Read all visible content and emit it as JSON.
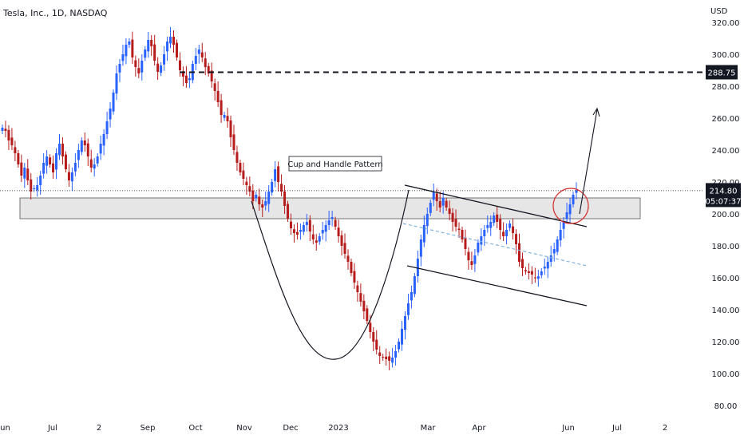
{
  "header": {
    "symbol": "Tesla, Inc., 1D, NASDAQ",
    "currency": "USD"
  },
  "chart_data": {
    "type": "candlestick",
    "y_ticks": [
      320,
      300,
      280,
      260,
      240,
      220,
      200,
      180,
      160,
      140,
      120,
      100,
      80
    ],
    "y_tick_labels": [
      "320.00",
      "300.00",
      "280.00",
      "260.00",
      "240.00",
      "220.00",
      "200.00",
      "180.00",
      "160.00",
      "140.00",
      "120.00",
      "100.00",
      "80.00"
    ],
    "x_labels": [
      "Jun",
      "Jul",
      "2",
      "Sep",
      "Oct",
      "Nov",
      "Dec",
      "2023",
      "Mar",
      "Apr",
      "Jun",
      "Jul",
      "2"
    ],
    "ylim": [
      75,
      325
    ],
    "last_price": "214.80",
    "countdown": "05:07:37",
    "target_price": "288.75",
    "annotation": "Cup and Handle Pattern",
    "support_zone": [
      197,
      210
    ],
    "grid": false,
    "colors": {
      "up": "#2962ff",
      "down": "#b71c1c",
      "line": "#131722",
      "zone": "#e6e6e6",
      "circle": "#d32f2f",
      "dash": "#7fb3e0"
    },
    "close_series": [
      254,
      252,
      246,
      243,
      238,
      231,
      224,
      229,
      221,
      214,
      216,
      218,
      224,
      232,
      236,
      231,
      226,
      238,
      244,
      236,
      228,
      221,
      226,
      232,
      240,
      246,
      243,
      236,
      229,
      231,
      236,
      244,
      250,
      258,
      266,
      276,
      288,
      294,
      300,
      306,
      308,
      298,
      292,
      288,
      296,
      303,
      309,
      305,
      296,
      289,
      293,
      300,
      308,
      311,
      306,
      298,
      290,
      286,
      282,
      285,
      294,
      299,
      303,
      298,
      292,
      288,
      283,
      277,
      270,
      262,
      262,
      258,
      248,
      240,
      232,
      226,
      222,
      218,
      214,
      208,
      212,
      206,
      204,
      208,
      214,
      220,
      228,
      220,
      214,
      205,
      197,
      191,
      188,
      187,
      190,
      193,
      195,
      189,
      184,
      182,
      186,
      190,
      193,
      196,
      198,
      192,
      186,
      180,
      175,
      170,
      163,
      157,
      151,
      145,
      139,
      133,
      126,
      120,
      115,
      111,
      110,
      109,
      108,
      110,
      114,
      120,
      128,
      136,
      144,
      151,
      161,
      172,
      184,
      193,
      200,
      207,
      214,
      208,
      204,
      210,
      204,
      200,
      195,
      192,
      190,
      184,
      178,
      171,
      168,
      174,
      182,
      186,
      190,
      193,
      195,
      199,
      195,
      190,
      186,
      190,
      194,
      188,
      181,
      170,
      166,
      164,
      163,
      162,
      160,
      161,
      164,
      167,
      170,
      174,
      178,
      184,
      190,
      195,
      201,
      206,
      212,
      214.8
    ]
  }
}
